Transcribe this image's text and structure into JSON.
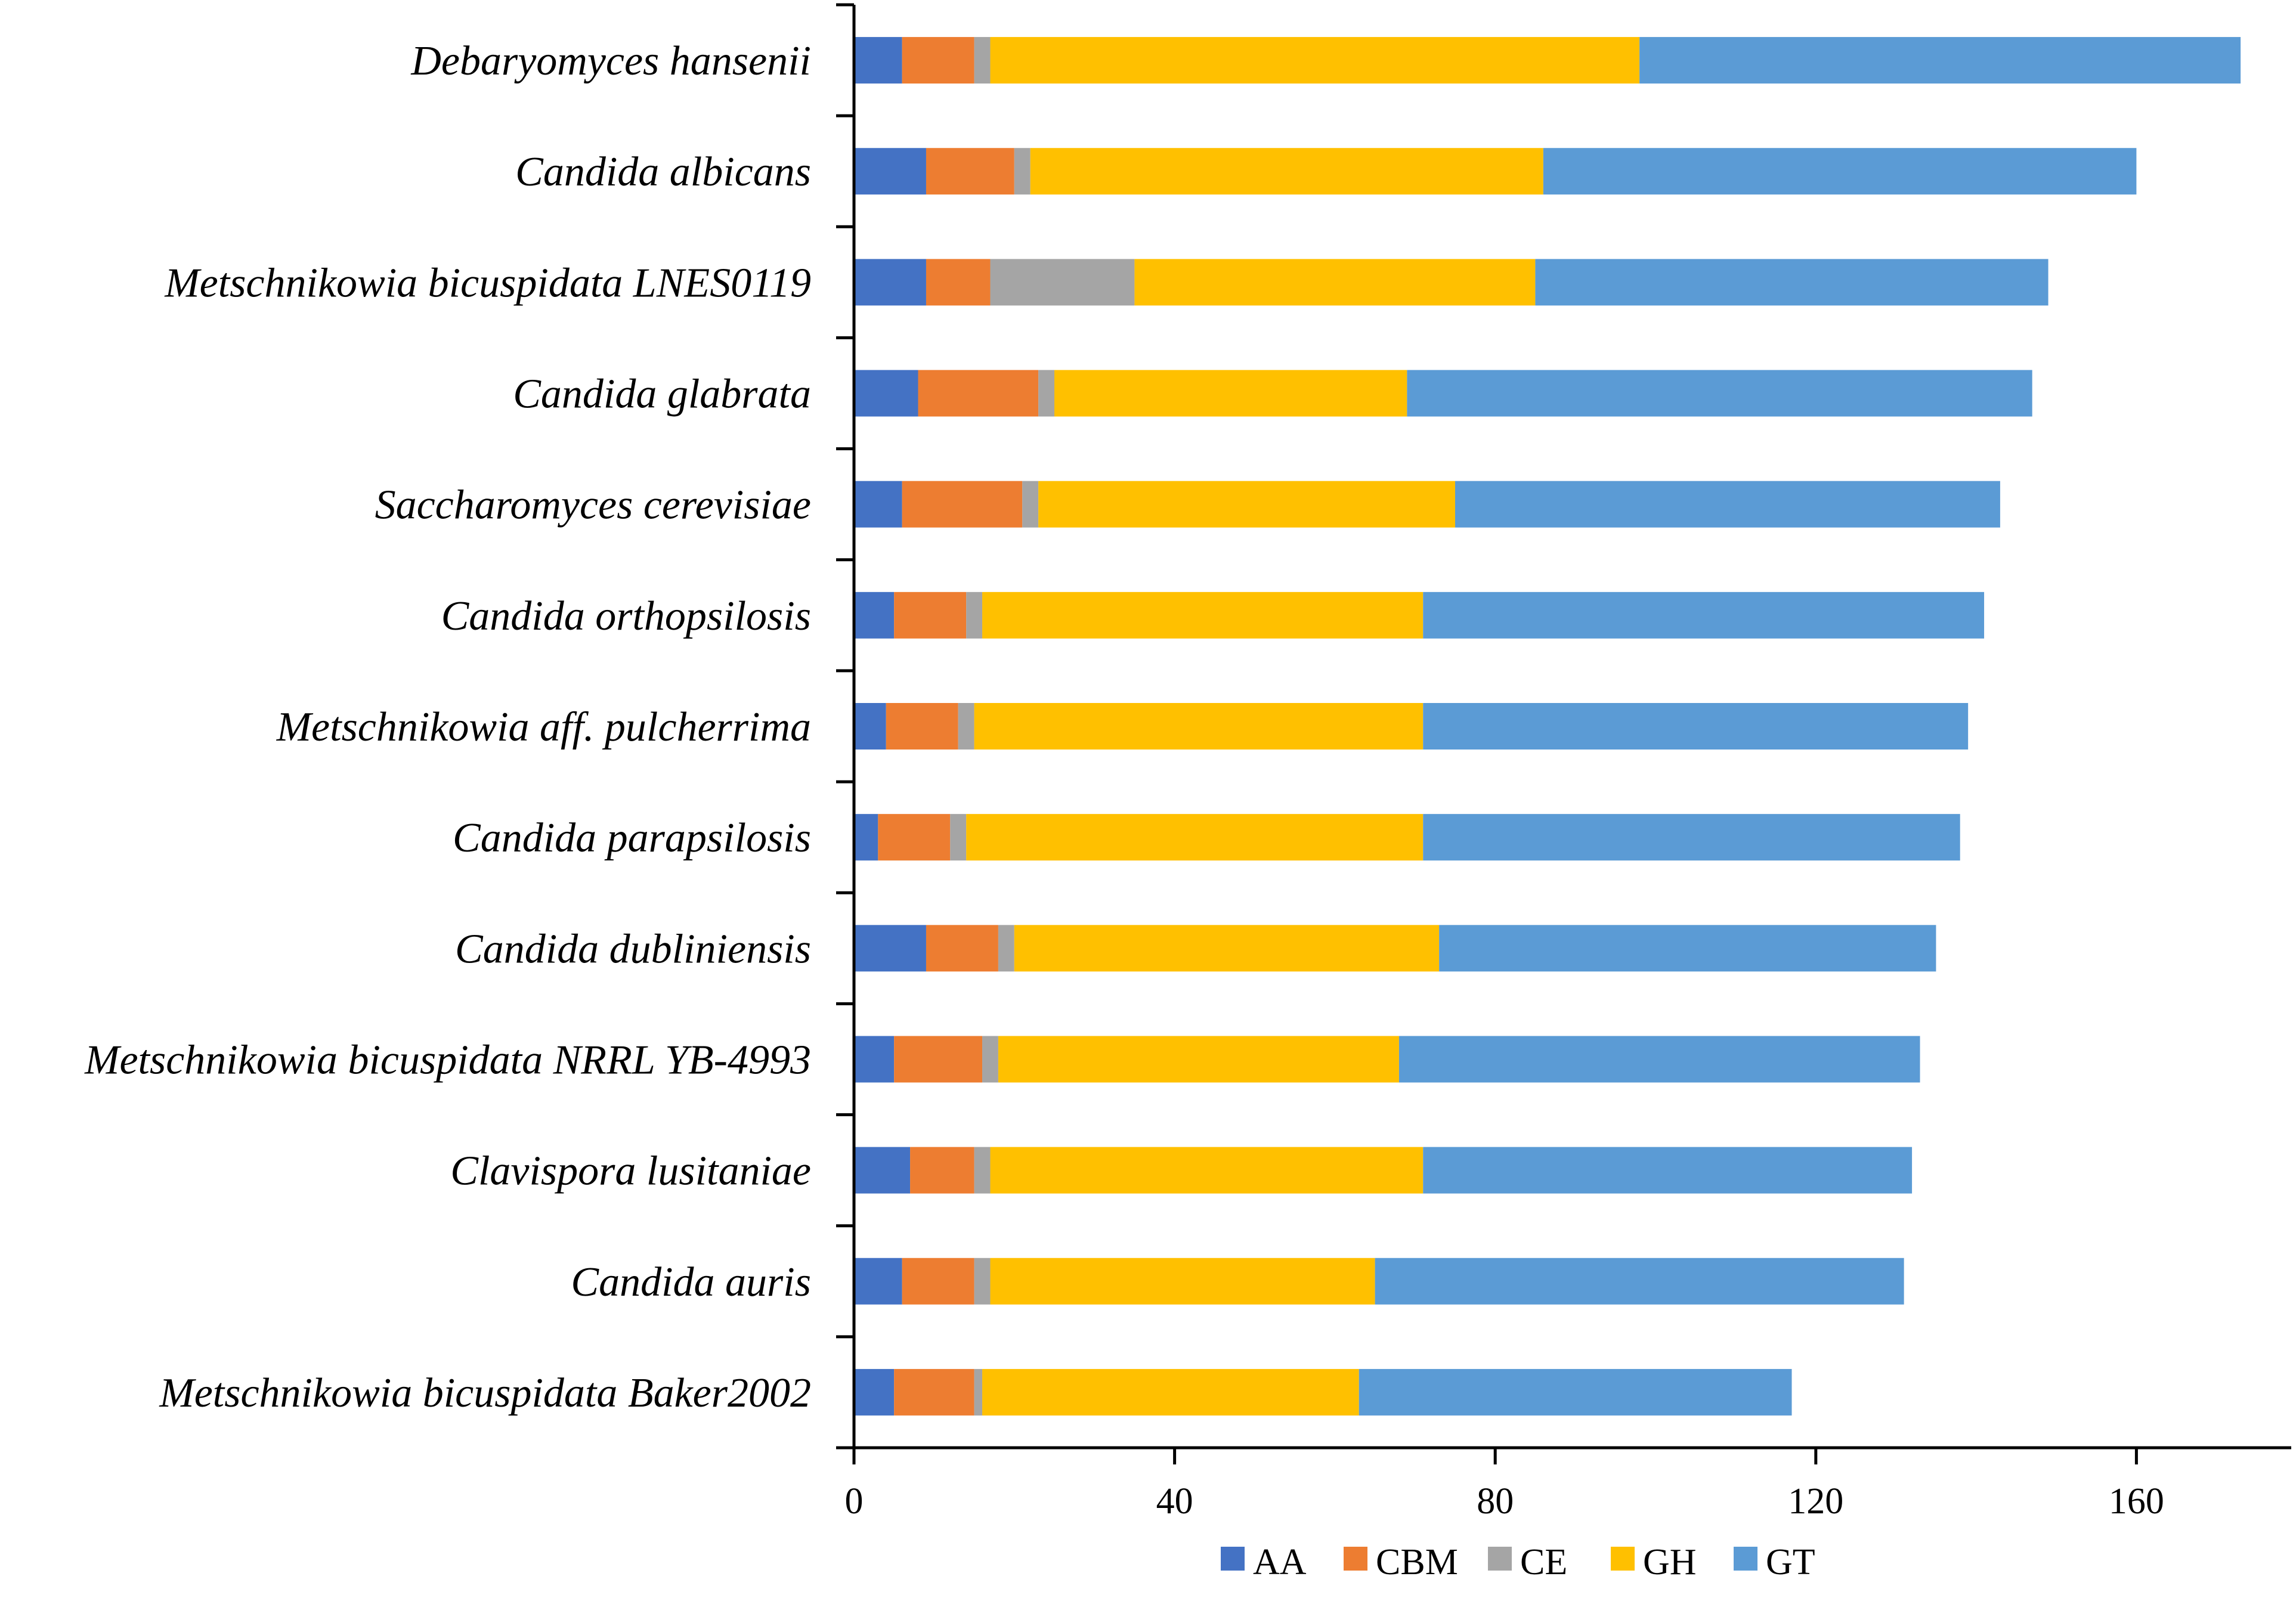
{
  "chart_data": {
    "type": "bar",
    "orientation": "horizontal",
    "stacked": true,
    "title": "",
    "xlabel": "",
    "ylabel": "",
    "xlim": [
      0,
      180
    ],
    "x_ticks": [
      0,
      40,
      80,
      120,
      160
    ],
    "grid": false,
    "legend_position": "bottom",
    "categories": [
      "Debaryomyces hansenii",
      "Candida albicans",
      "Metschnikowia bicuspidata LNES0119",
      "Candida glabrata",
      "Saccharomyces cerevisiae",
      "Candida orthopsilosis",
      "Metschnikowia aff. pulcherrima",
      "Candida parapsilosis",
      "Candida dubliniensis",
      "Metschnikowia bicuspidata NRRL YB-4993",
      "Clavispora lusitaniae",
      "Candida auris",
      "Metschnikowia bicuspidata Baker2002"
    ],
    "series": [
      {
        "name": "AA",
        "color": "#4472C4",
        "values": [
          6,
          9,
          9,
          8,
          6,
          5,
          4,
          3,
          9,
          5,
          7,
          6,
          5
        ]
      },
      {
        "name": "CBM",
        "color": "#ED7D31",
        "values": [
          9,
          11,
          8,
          15,
          15,
          9,
          9,
          9,
          9,
          11,
          8,
          9,
          10
        ]
      },
      {
        "name": "CE",
        "color": "#A5A5A5",
        "values": [
          2,
          2,
          18,
          2,
          2,
          2,
          2,
          2,
          2,
          2,
          2,
          2,
          1
        ]
      },
      {
        "name": "GH",
        "color": "#FFC000",
        "values": [
          81,
          64,
          50,
          44,
          52,
          55,
          56,
          57,
          53,
          50,
          54,
          48,
          47
        ]
      },
      {
        "name": "GT",
        "color": "#5B9BD5",
        "values": [
          75,
          74,
          64,
          78,
          68,
          70,
          68,
          67,
          62,
          65,
          61,
          66,
          54
        ]
      }
    ]
  }
}
